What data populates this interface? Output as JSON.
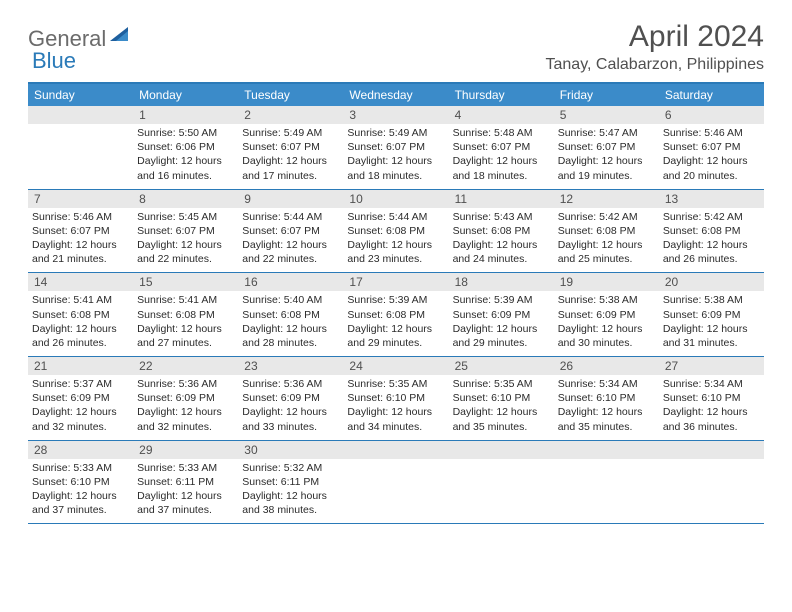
{
  "logo": {
    "word1": "General",
    "word2": "Blue"
  },
  "title": "April 2024",
  "location": "Tanay, Calabarzon, Philippines",
  "colors": {
    "header_bar": "#3b8bc9",
    "border": "#2a7ab8",
    "daynum_bg": "#e8e8e8",
    "text_muted": "#505050",
    "text_body": "#2b2b2b",
    "logo_gray": "#6b6b6b",
    "logo_blue": "#2a7ab8",
    "white": "#ffffff"
  },
  "days_of_week": [
    "Sunday",
    "Monday",
    "Tuesday",
    "Wednesday",
    "Thursday",
    "Friday",
    "Saturday"
  ],
  "weeks": [
    [
      {
        "num": "",
        "sunrise": "",
        "sunset": "",
        "daylight": ""
      },
      {
        "num": "1",
        "sunrise": "Sunrise: 5:50 AM",
        "sunset": "Sunset: 6:06 PM",
        "daylight": "Daylight: 12 hours and 16 minutes."
      },
      {
        "num": "2",
        "sunrise": "Sunrise: 5:49 AM",
        "sunset": "Sunset: 6:07 PM",
        "daylight": "Daylight: 12 hours and 17 minutes."
      },
      {
        "num": "3",
        "sunrise": "Sunrise: 5:49 AM",
        "sunset": "Sunset: 6:07 PM",
        "daylight": "Daylight: 12 hours and 18 minutes."
      },
      {
        "num": "4",
        "sunrise": "Sunrise: 5:48 AM",
        "sunset": "Sunset: 6:07 PM",
        "daylight": "Daylight: 12 hours and 18 minutes."
      },
      {
        "num": "5",
        "sunrise": "Sunrise: 5:47 AM",
        "sunset": "Sunset: 6:07 PM",
        "daylight": "Daylight: 12 hours and 19 minutes."
      },
      {
        "num": "6",
        "sunrise": "Sunrise: 5:46 AM",
        "sunset": "Sunset: 6:07 PM",
        "daylight": "Daylight: 12 hours and 20 minutes."
      }
    ],
    [
      {
        "num": "7",
        "sunrise": "Sunrise: 5:46 AM",
        "sunset": "Sunset: 6:07 PM",
        "daylight": "Daylight: 12 hours and 21 minutes."
      },
      {
        "num": "8",
        "sunrise": "Sunrise: 5:45 AM",
        "sunset": "Sunset: 6:07 PM",
        "daylight": "Daylight: 12 hours and 22 minutes."
      },
      {
        "num": "9",
        "sunrise": "Sunrise: 5:44 AM",
        "sunset": "Sunset: 6:07 PM",
        "daylight": "Daylight: 12 hours and 22 minutes."
      },
      {
        "num": "10",
        "sunrise": "Sunrise: 5:44 AM",
        "sunset": "Sunset: 6:08 PM",
        "daylight": "Daylight: 12 hours and 23 minutes."
      },
      {
        "num": "11",
        "sunrise": "Sunrise: 5:43 AM",
        "sunset": "Sunset: 6:08 PM",
        "daylight": "Daylight: 12 hours and 24 minutes."
      },
      {
        "num": "12",
        "sunrise": "Sunrise: 5:42 AM",
        "sunset": "Sunset: 6:08 PM",
        "daylight": "Daylight: 12 hours and 25 minutes."
      },
      {
        "num": "13",
        "sunrise": "Sunrise: 5:42 AM",
        "sunset": "Sunset: 6:08 PM",
        "daylight": "Daylight: 12 hours and 26 minutes."
      }
    ],
    [
      {
        "num": "14",
        "sunrise": "Sunrise: 5:41 AM",
        "sunset": "Sunset: 6:08 PM",
        "daylight": "Daylight: 12 hours and 26 minutes."
      },
      {
        "num": "15",
        "sunrise": "Sunrise: 5:41 AM",
        "sunset": "Sunset: 6:08 PM",
        "daylight": "Daylight: 12 hours and 27 minutes."
      },
      {
        "num": "16",
        "sunrise": "Sunrise: 5:40 AM",
        "sunset": "Sunset: 6:08 PM",
        "daylight": "Daylight: 12 hours and 28 minutes."
      },
      {
        "num": "17",
        "sunrise": "Sunrise: 5:39 AM",
        "sunset": "Sunset: 6:08 PM",
        "daylight": "Daylight: 12 hours and 29 minutes."
      },
      {
        "num": "18",
        "sunrise": "Sunrise: 5:39 AM",
        "sunset": "Sunset: 6:09 PM",
        "daylight": "Daylight: 12 hours and 29 minutes."
      },
      {
        "num": "19",
        "sunrise": "Sunrise: 5:38 AM",
        "sunset": "Sunset: 6:09 PM",
        "daylight": "Daylight: 12 hours and 30 minutes."
      },
      {
        "num": "20",
        "sunrise": "Sunrise: 5:38 AM",
        "sunset": "Sunset: 6:09 PM",
        "daylight": "Daylight: 12 hours and 31 minutes."
      }
    ],
    [
      {
        "num": "21",
        "sunrise": "Sunrise: 5:37 AM",
        "sunset": "Sunset: 6:09 PM",
        "daylight": "Daylight: 12 hours and 32 minutes."
      },
      {
        "num": "22",
        "sunrise": "Sunrise: 5:36 AM",
        "sunset": "Sunset: 6:09 PM",
        "daylight": "Daylight: 12 hours and 32 minutes."
      },
      {
        "num": "23",
        "sunrise": "Sunrise: 5:36 AM",
        "sunset": "Sunset: 6:09 PM",
        "daylight": "Daylight: 12 hours and 33 minutes."
      },
      {
        "num": "24",
        "sunrise": "Sunrise: 5:35 AM",
        "sunset": "Sunset: 6:10 PM",
        "daylight": "Daylight: 12 hours and 34 minutes."
      },
      {
        "num": "25",
        "sunrise": "Sunrise: 5:35 AM",
        "sunset": "Sunset: 6:10 PM",
        "daylight": "Daylight: 12 hours and 35 minutes."
      },
      {
        "num": "26",
        "sunrise": "Sunrise: 5:34 AM",
        "sunset": "Sunset: 6:10 PM",
        "daylight": "Daylight: 12 hours and 35 minutes."
      },
      {
        "num": "27",
        "sunrise": "Sunrise: 5:34 AM",
        "sunset": "Sunset: 6:10 PM",
        "daylight": "Daylight: 12 hours and 36 minutes."
      }
    ],
    [
      {
        "num": "28",
        "sunrise": "Sunrise: 5:33 AM",
        "sunset": "Sunset: 6:10 PM",
        "daylight": "Daylight: 12 hours and 37 minutes."
      },
      {
        "num": "29",
        "sunrise": "Sunrise: 5:33 AM",
        "sunset": "Sunset: 6:11 PM",
        "daylight": "Daylight: 12 hours and 37 minutes."
      },
      {
        "num": "30",
        "sunrise": "Sunrise: 5:32 AM",
        "sunset": "Sunset: 6:11 PM",
        "daylight": "Daylight: 12 hours and 38 minutes."
      },
      {
        "num": "",
        "sunrise": "",
        "sunset": "",
        "daylight": ""
      },
      {
        "num": "",
        "sunrise": "",
        "sunset": "",
        "daylight": ""
      },
      {
        "num": "",
        "sunrise": "",
        "sunset": "",
        "daylight": ""
      },
      {
        "num": "",
        "sunrise": "",
        "sunset": "",
        "daylight": ""
      }
    ]
  ]
}
